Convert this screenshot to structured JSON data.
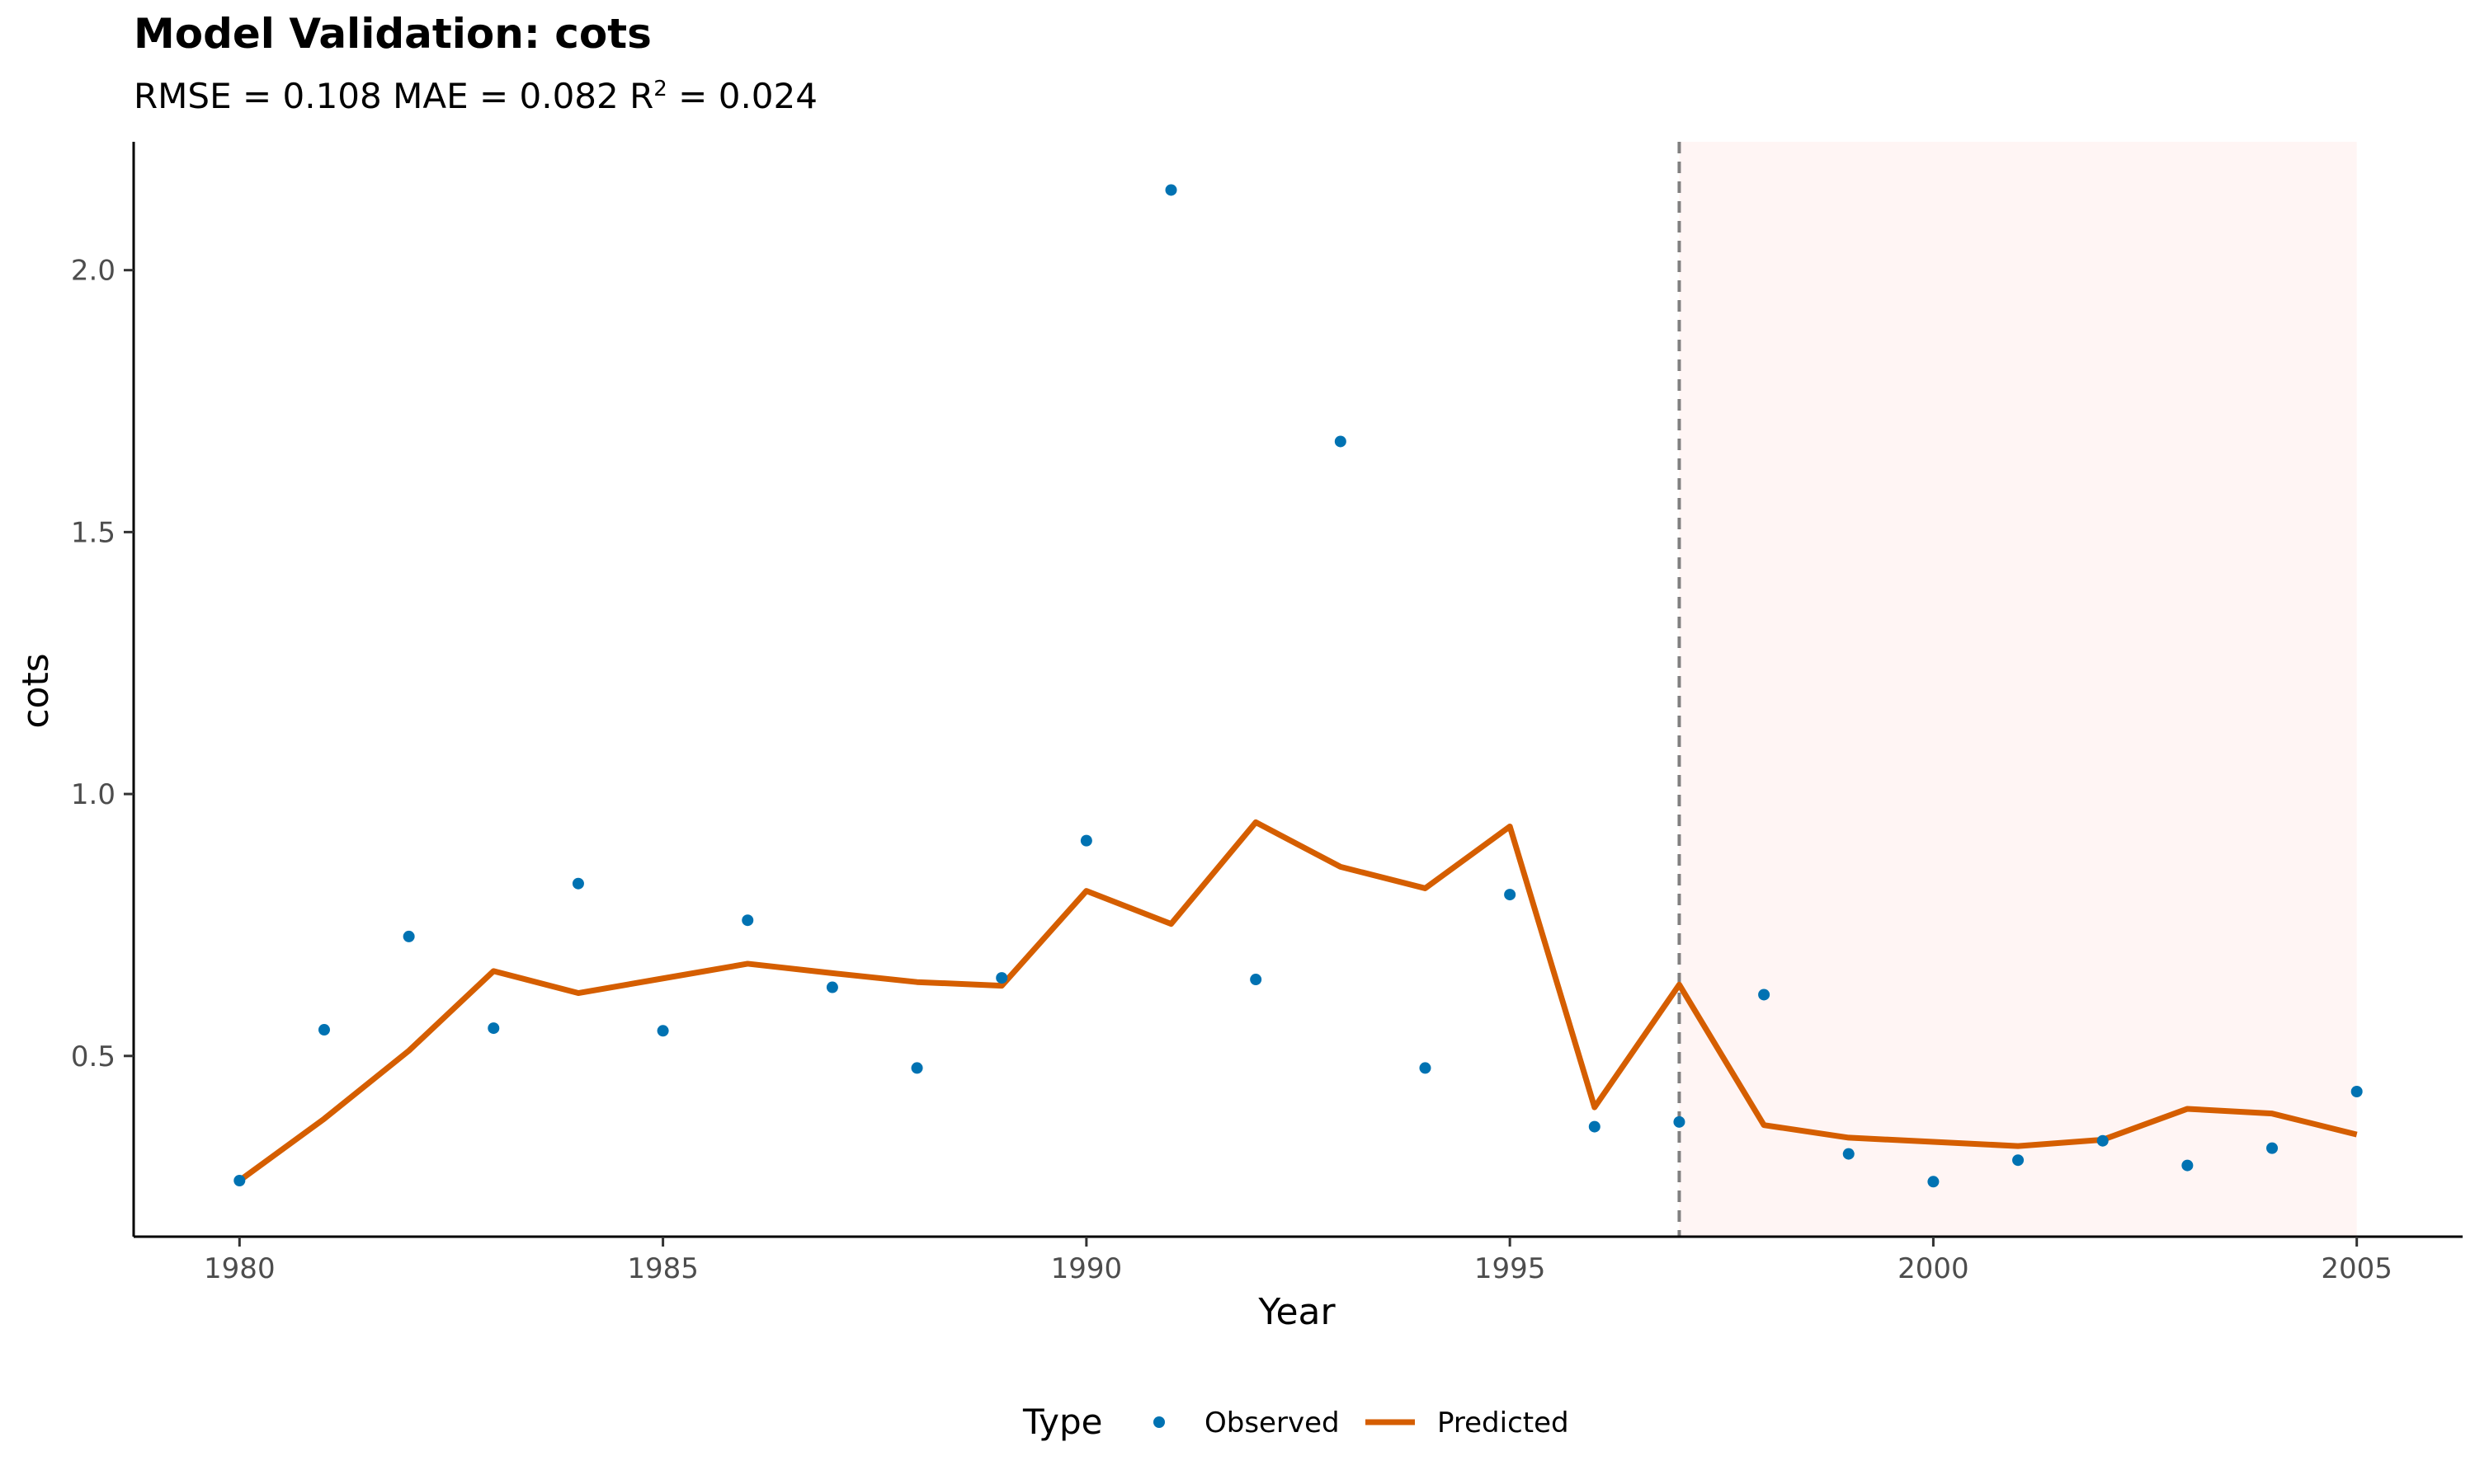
{
  "chart_data": {
    "type": "line",
    "title": "Model Validation: cots",
    "subtitle": {
      "prefix": "RMSE = 0.108 MAE = 0.082 R",
      "superscript": "2",
      "suffix": " = 0.024"
    },
    "xlabel": "Year",
    "ylabel": "cots",
    "xlim": [
      1978.75,
      2006.25
    ],
    "ylim": [
      0.155,
      2.245
    ],
    "x_ticks": [
      1980,
      1985,
      1990,
      1995,
      2000,
      2005
    ],
    "y_ticks": [
      0.5,
      1.0,
      1.5,
      2.0
    ],
    "y_tick_labels": [
      "0.5",
      "1.0",
      "1.5",
      "2.0"
    ],
    "validation_split_year": 1997,
    "validation_region": [
      1997,
      2005
    ],
    "legend": {
      "title": "Type",
      "position": "bottom",
      "entries": [
        "Observed",
        "Predicted"
      ]
    },
    "colors": {
      "observed": "#0072B2",
      "predicted": "#D55E00",
      "validation_fill": "#FFF5F4",
      "split_line": "#808080"
    },
    "series": [
      {
        "name": "Observed",
        "kind": "points",
        "x": [
          1980,
          1981,
          1982,
          1983,
          1984,
          1985,
          1986,
          1987,
          1988,
          1989,
          1990,
          1991,
          1992,
          1993,
          1994,
          1995,
          1996,
          1997,
          1998,
          1999,
          2000,
          2001,
          2002,
          2003,
          2004,
          2005
        ],
        "values": [
          0.262,
          0.55,
          0.728,
          0.553,
          0.829,
          0.548,
          0.759,
          0.631,
          0.477,
          0.649,
          0.911,
          2.153,
          0.646,
          1.673,
          0.477,
          0.808,
          0.365,
          0.374,
          0.617,
          0.313,
          0.26,
          0.301,
          0.338,
          0.291,
          0.324,
          0.432
        ]
      },
      {
        "name": "Predicted",
        "kind": "line",
        "x": [
          1980,
          1981,
          1982,
          1983,
          1984,
          1985,
          1986,
          1987,
          1988,
          1989,
          1990,
          1991,
          1992,
          1993,
          1994,
          1995,
          1996,
          1997,
          1998,
          1999,
          2000,
          2001,
          2002,
          2003,
          2004,
          2005
        ],
        "values": [
          0.262,
          0.38,
          0.51,
          0.662,
          0.62,
          0.648,
          0.676,
          0.658,
          0.641,
          0.634,
          0.815,
          0.752,
          0.946,
          0.861,
          0.82,
          0.938,
          0.402,
          0.636,
          0.368,
          0.344,
          0.336,
          0.328,
          0.34,
          0.399,
          0.39,
          0.35
        ]
      }
    ]
  }
}
